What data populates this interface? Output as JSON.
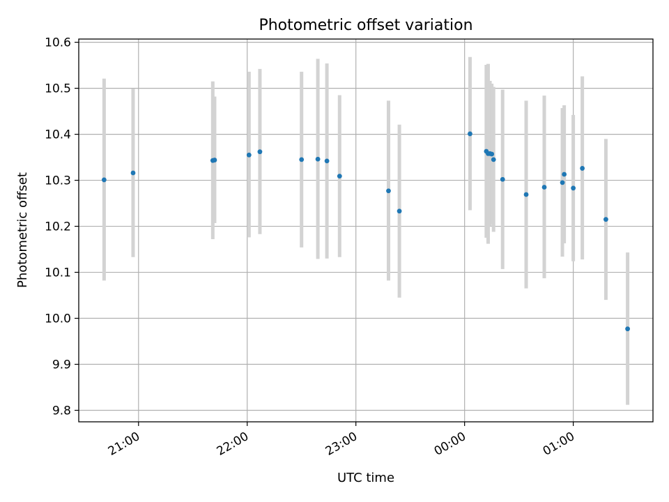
{
  "chart_data": {
    "type": "scatter",
    "title": "Photometric offset variation",
    "xlabel": "UTC time",
    "ylabel": "Photometric offset",
    "x_ticks": [
      "21:00",
      "22:00",
      "23:00",
      "00:00",
      "01:00"
    ],
    "y_ticks": [
      "9.8",
      "9.9",
      "10.0",
      "10.1",
      "10.2",
      "10.3",
      "10.4",
      "10.5",
      "10.6"
    ],
    "xlim": [
      "20:27",
      "01:44"
    ],
    "ylim": [
      9.775,
      10.607
    ],
    "grid": true,
    "legend": "none",
    "error_bar_color": "#d3d3d3",
    "point_color": "#1f77b4",
    "points": [
      {
        "x": "20:41",
        "y": 10.301,
        "y_low": 10.082,
        "y_high": 10.521
      },
      {
        "x": "20:57",
        "y": 10.316,
        "y_low": 10.133,
        "y_high": 10.499
      },
      {
        "x": "21:41",
        "y": 10.343,
        "y_low": 10.172,
        "y_high": 10.515
      },
      {
        "x": "21:42",
        "y": 10.344,
        "y_low": 10.207,
        "y_high": 10.482
      },
      {
        "x": "22:01",
        "y": 10.355,
        "y_low": 10.176,
        "y_high": 10.536
      },
      {
        "x": "22:07",
        "y": 10.362,
        "y_low": 10.183,
        "y_high": 10.542
      },
      {
        "x": "22:30",
        "y": 10.345,
        "y_low": 10.154,
        "y_high": 10.536
      },
      {
        "x": "22:39",
        "y": 10.346,
        "y_low": 10.129,
        "y_high": 10.564
      },
      {
        "x": "22:44",
        "y": 10.342,
        "y_low": 10.13,
        "y_high": 10.554
      },
      {
        "x": "22:51",
        "y": 10.309,
        "y_low": 10.133,
        "y_high": 10.485
      },
      {
        "x": "23:18",
        "y": 10.277,
        "y_low": 10.082,
        "y_high": 10.473
      },
      {
        "x": "23:24",
        "y": 10.233,
        "y_low": 10.045,
        "y_high": 10.421
      },
      {
        "x": "00:03",
        "y": 10.401,
        "y_low": 10.235,
        "y_high": 10.568
      },
      {
        "x": "00:12",
        "y": 10.363,
        "y_low": 10.175,
        "y_high": 10.551
      },
      {
        "x": "00:13",
        "y": 10.358,
        "y_low": 10.162,
        "y_high": 10.553
      },
      {
        "x": "00:14",
        "y": 10.358,
        "y_low": 10.2,
        "y_high": 10.516
      },
      {
        "x": "00:15",
        "y": 10.357,
        "y_low": 10.205,
        "y_high": 10.51
      },
      {
        "x": "00:16",
        "y": 10.345,
        "y_low": 10.188,
        "y_high": 10.503
      },
      {
        "x": "00:21",
        "y": 10.302,
        "y_low": 10.107,
        "y_high": 10.497
      },
      {
        "x": "00:34",
        "y": 10.269,
        "y_low": 10.065,
        "y_high": 10.473
      },
      {
        "x": "00:44",
        "y": 10.285,
        "y_low": 10.087,
        "y_high": 10.484
      },
      {
        "x": "00:54",
        "y": 10.295,
        "y_low": 10.134,
        "y_high": 10.457
      },
      {
        "x": "00:55",
        "y": 10.313,
        "y_low": 10.163,
        "y_high": 10.463
      },
      {
        "x": "01:00",
        "y": 10.283,
        "y_low": 10.124,
        "y_high": 10.442
      },
      {
        "x": "01:05",
        "y": 10.326,
        "y_low": 10.128,
        "y_high": 10.526
      },
      {
        "x": "01:18",
        "y": 10.215,
        "y_low": 10.04,
        "y_high": 10.39
      },
      {
        "x": "01:30",
        "y": 9.977,
        "y_low": 9.812,
        "y_high": 10.143
      }
    ]
  }
}
